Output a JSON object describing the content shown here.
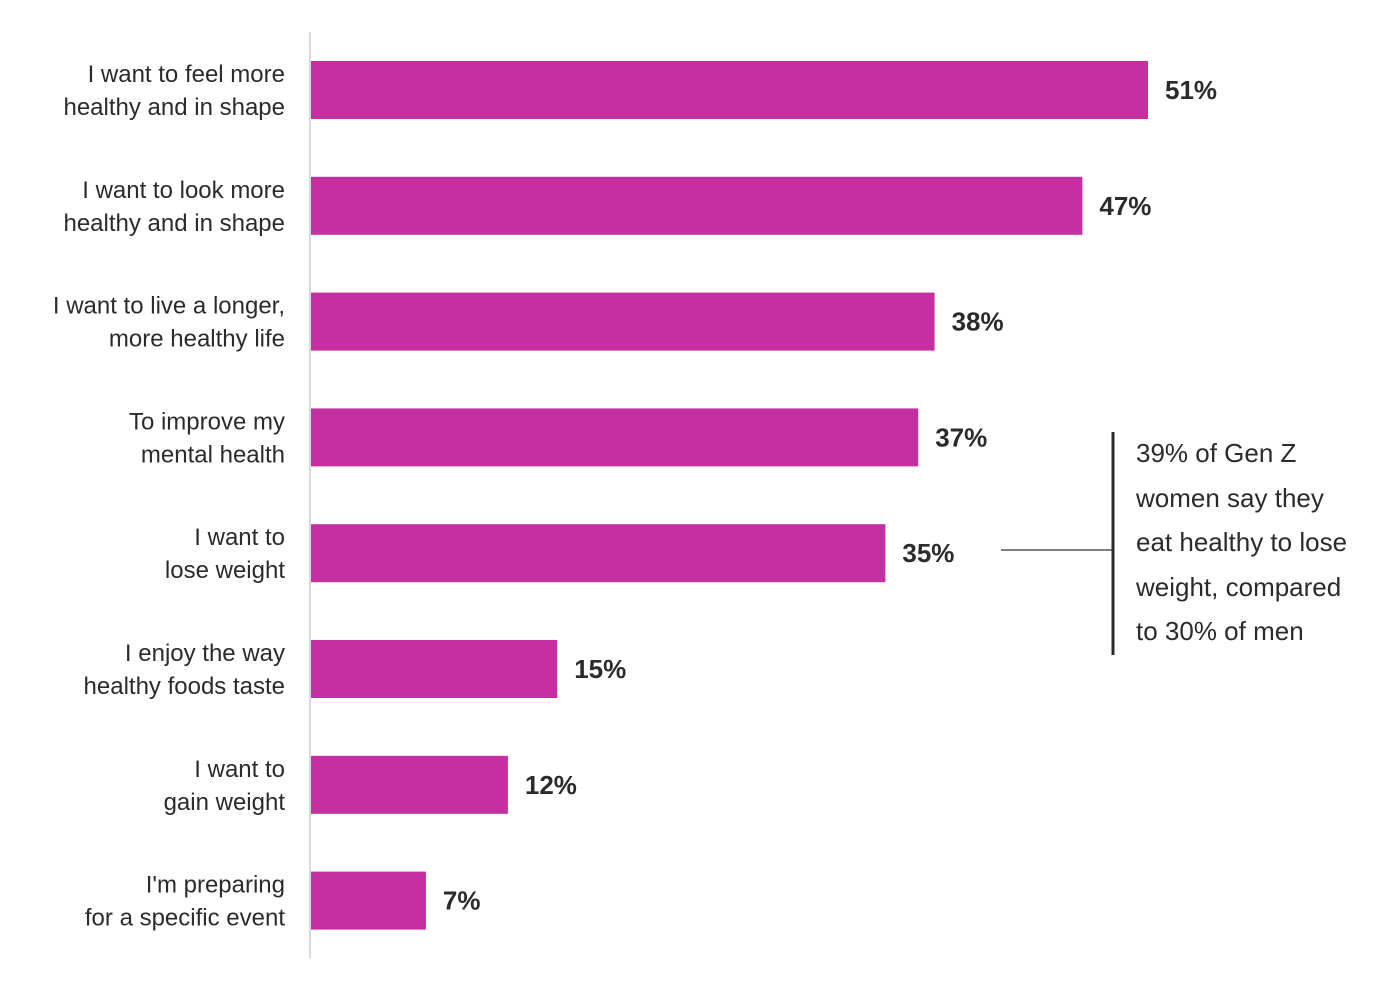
{
  "chart_data": {
    "type": "bar",
    "orientation": "horizontal",
    "categories": [
      [
        "I want to feel more",
        "healthy and in shape"
      ],
      [
        "I want to look more",
        "healthy and in shape"
      ],
      [
        "I want to live a longer,",
        "more healthy life"
      ],
      [
        "To improve my",
        "mental health"
      ],
      [
        "I want to",
        "lose weight"
      ],
      [
        "I enjoy the way",
        "healthy foods taste"
      ],
      [
        "I want to",
        "gain weight"
      ],
      [
        "I'm preparing",
        "for a specific event"
      ]
    ],
    "values": [
      51,
      47,
      38,
      37,
      35,
      15,
      12,
      7
    ],
    "value_labels": [
      "51%",
      "47%",
      "38%",
      "37%",
      "35%",
      "15%",
      "12%",
      "7%"
    ],
    "unit": "%",
    "xlim": [
      0,
      51
    ],
    "grid": false,
    "legend": false,
    "bar_color": "#c4309f",
    "axis_color": "#d9d9d9",
    "annotation": {
      "lines": [
        "39% of Gen Z",
        "women say they",
        "eat healthy to lose",
        "weight, compared",
        "to 30% of men"
      ],
      "points_to_index": 4
    }
  }
}
